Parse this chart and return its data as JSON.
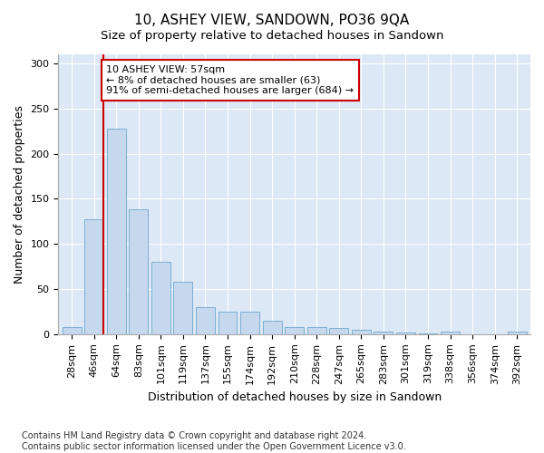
{
  "title": "10, ASHEY VIEW, SANDOWN, PO36 9QA",
  "subtitle": "Size of property relative to detached houses in Sandown",
  "xlabel": "Distribution of detached houses by size in Sandown",
  "ylabel": "Number of detached properties",
  "categories": [
    "28sqm",
    "46sqm",
    "64sqm",
    "83sqm",
    "101sqm",
    "119sqm",
    "137sqm",
    "155sqm",
    "174sqm",
    "192sqm",
    "210sqm",
    "228sqm",
    "247sqm",
    "265sqm",
    "283sqm",
    "301sqm",
    "319sqm",
    "338sqm",
    "356sqm",
    "374sqm",
    "392sqm"
  ],
  "values": [
    8,
    127,
    228,
    138,
    80,
    58,
    30,
    25,
    25,
    15,
    8,
    8,
    7,
    5,
    3,
    2,
    1,
    3,
    0,
    0,
    3
  ],
  "bar_color": "#c5d8ed",
  "bar_edgecolor": "#7bafd4",
  "vline_x": 1.42,
  "vline_color": "#cc0000",
  "annotation_text": "10 ASHEY VIEW: 57sqm\n← 8% of detached houses are smaller (63)\n91% of semi-detached houses are larger (684) →",
  "annotation_box_edgecolor": "#cc0000",
  "annotation_box_facecolor": "#ffffff",
  "ylim": [
    0,
    310
  ],
  "yticks": [
    0,
    50,
    100,
    150,
    200,
    250,
    300
  ],
  "footnote": "Contains HM Land Registry data © Crown copyright and database right 2024.\nContains public sector information licensed under the Open Government Licence v3.0.",
  "bg_color": "#ffffff",
  "plot_bg_color": "#dce8f5",
  "title_fontsize": 11,
  "tick_fontsize": 8,
  "ylabel_fontsize": 9,
  "xlabel_fontsize": 9,
  "footnote_fontsize": 7
}
